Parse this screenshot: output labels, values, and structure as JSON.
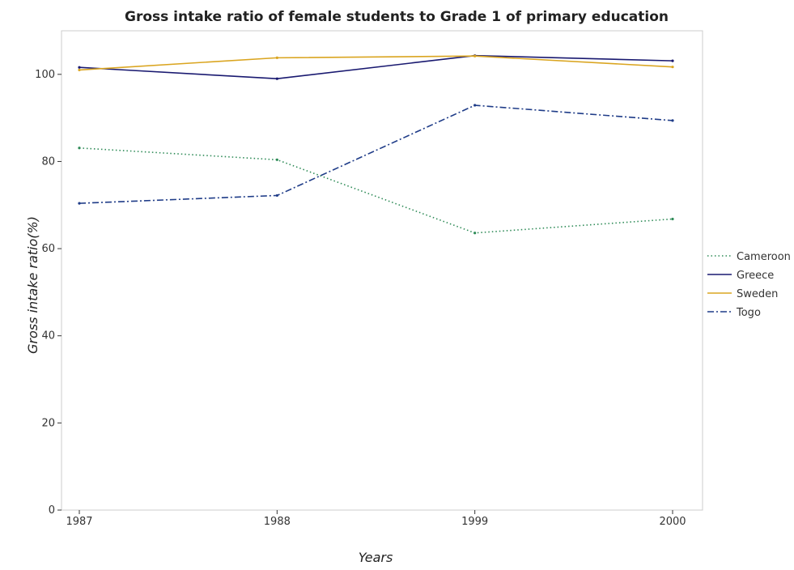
{
  "chart_data": {
    "type": "line",
    "title": "Gross intake ratio of female students to Grade 1 of primary education",
    "xlabel": "Years",
    "ylabel": "Gross intake ratio(%)",
    "categories": [
      "1987",
      "1988",
      "1999",
      "2000"
    ],
    "ylim": [
      0,
      110
    ],
    "yticks": [
      0,
      20,
      40,
      60,
      80,
      100
    ],
    "grid": false,
    "legend_position": "right",
    "series": [
      {
        "name": "Cameroon",
        "color": "#2e8b57",
        "dash": "dotted",
        "values": [
          83.1,
          80.4,
          63.6,
          66.8
        ]
      },
      {
        "name": "Greece",
        "color": "#191970",
        "dash": "solid",
        "values": [
          101.6,
          99.0,
          104.3,
          103.1
        ]
      },
      {
        "name": "Sweden",
        "color": "#daa520",
        "dash": "solid",
        "values": [
          101.0,
          103.8,
          104.2,
          101.7
        ]
      },
      {
        "name": "Togo",
        "color": "#1f3c88",
        "dash": "dashdot",
        "values": [
          70.4,
          72.2,
          92.9,
          89.4
        ]
      }
    ]
  }
}
